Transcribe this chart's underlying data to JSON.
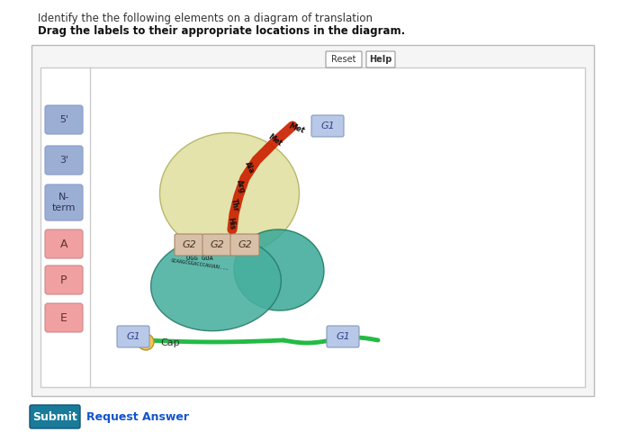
{
  "title_line1": "Identify the the following elements on a diagram of translation",
  "title_line2": "Drag the labels to their appropriate locations in the diagram.",
  "blue_label_color": "#9baed4",
  "pink_label_color": "#f0a0a0",
  "g1_label": "G1",
  "g2_label": "G2",
  "g1_box_color": "#b8c8e8",
  "g2_box_color": "#d8c0a8",
  "reset_text": "Reset",
  "help_text": "Help",
  "submit_text": "Submit",
  "request_text": "Request Answer",
  "cap_text": "Cap",
  "peptide_labels": [
    "His",
    "Thr",
    "Arg",
    "Ala",
    "Met"
  ],
  "left_labels_blue": [
    "5'",
    "3'",
    "N-\nterm"
  ],
  "left_labels_pink": [
    "A",
    "P",
    "E"
  ]
}
